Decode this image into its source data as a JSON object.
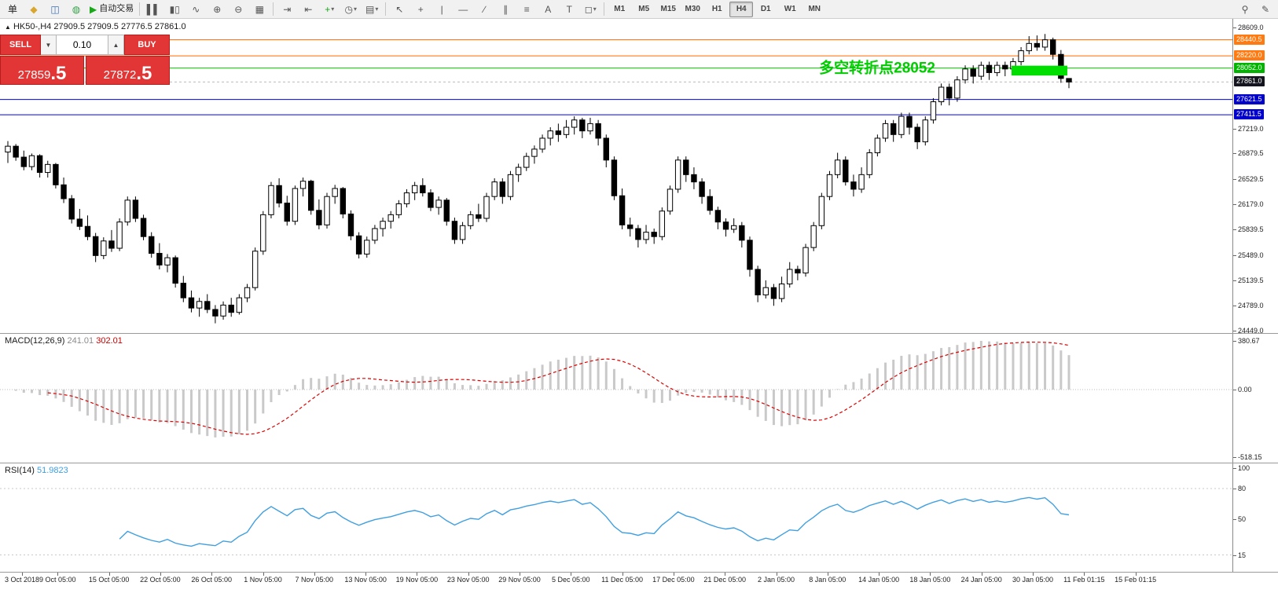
{
  "toolbar": {
    "left_items": [
      {
        "name": "new-order-button",
        "glyph": "单",
        "color": "#222"
      },
      {
        "name": "chart-wizard-icon",
        "glyph": "◆",
        "color": "#d9a62e"
      },
      {
        "name": "profiles-icon",
        "glyph": "◫",
        "color": "#3a6fb5"
      },
      {
        "name": "refresh-icon",
        "glyph": "◍",
        "color": "#36a04a"
      },
      {
        "name": "autotrading-button",
        "glyph": "▶",
        "color": "#18a818",
        "label": "自动交易"
      },
      {
        "sep": true
      },
      {
        "name": "bar-chart-button",
        "glyph": "▌▌"
      },
      {
        "name": "candlestick-chart-button",
        "glyph": "▮▯"
      },
      {
        "name": "line-chart-button",
        "glyph": "∿"
      },
      {
        "name": "zoom-in-button",
        "glyph": "⊕"
      },
      {
        "name": "zoom-out-button",
        "glyph": "⊖"
      },
      {
        "name": "tile-windows-button",
        "glyph": "▦"
      },
      {
        "sep": true
      },
      {
        "name": "auto-scroll-button",
        "glyph": "⇥"
      },
      {
        "name": "chart-shift-button",
        "glyph": "⇤"
      },
      {
        "name": "indicators-button",
        "glyph": "+",
        "color": "#18a818",
        "arrow": true
      },
      {
        "name": "periods-button",
        "glyph": "◷",
        "arrow": true
      },
      {
        "name": "templates-button",
        "glyph": "▤",
        "arrow": true
      },
      {
        "sep": true
      },
      {
        "name": "cursor-button",
        "glyph": "↖"
      },
      {
        "name": "crosshair-button",
        "glyph": "+"
      },
      {
        "name": "vertical-line-button",
        "glyph": "|"
      },
      {
        "name": "horizontal-line-button",
        "glyph": "—"
      },
      {
        "name": "trendline-button",
        "glyph": "∕"
      },
      {
        "name": "channel-button",
        "glyph": "∥"
      },
      {
        "name": "fibonacci-button",
        "glyph": "≡"
      },
      {
        "name": "text-button",
        "glyph": "A"
      },
      {
        "name": "text-label-button",
        "glyph": "T"
      },
      {
        "name": "shapes-button",
        "glyph": "◻",
        "arrow": true
      },
      {
        "sep": true
      }
    ],
    "timeframes": {
      "items": [
        "M1",
        "M5",
        "M15",
        "M30",
        "H1",
        "H4",
        "D1",
        "W1",
        "MN"
      ],
      "active": "H4"
    },
    "right_items": [
      {
        "name": "search-icon",
        "glyph": "⚲"
      },
      {
        "name": "edit-icon",
        "glyph": "✎"
      }
    ]
  },
  "symbol_header": {
    "arrow": "▲",
    "symbol": "HK50-,H4",
    "ohlc": "27909.5 27909.5 27776.5 27861.0"
  },
  "trade_panel": {
    "sell_label": "SELL",
    "buy_label": "BUY",
    "lot": "0.10",
    "spinner_down": "▼",
    "spinner_up": "▲",
    "sell_price": "27859",
    "sell_price_frac": ".5",
    "buy_price": "27872",
    "buy_price_frac": ".5"
  },
  "chart_data": {
    "type": "candlestick",
    "symbol": "HK50-",
    "timeframe": "H4",
    "price_range": {
      "min": 24449.0,
      "max": 28609.0
    },
    "y_ticks": [
      "28609.0",
      "27219.0",
      "26879.5",
      "26529.5",
      "26179.0",
      "25839.5",
      "25489.0",
      "25139.5",
      "24789.0",
      "24449.0"
    ],
    "levels": [
      {
        "price": 28440.5,
        "label": "28440.5",
        "line_color": "#ff6a00",
        "badge_color": "#ff7a10",
        "style": "solid"
      },
      {
        "price": 28220.0,
        "label": "28220.0",
        "line_color": "#ff6a00",
        "badge_color": "#ff7a10",
        "style": "solid"
      },
      {
        "price": 28052.0,
        "label": "28052.0",
        "line_color": "#00cc00",
        "badge_color": "#00b400",
        "style": "solid"
      },
      {
        "price": 27861.0,
        "label": "27861.0",
        "line_color": "#bbbbbb",
        "badge_color": "#15151f",
        "style": "dashed",
        "role": "last-price"
      },
      {
        "price": 27621.5,
        "label": "27621.5",
        "line_color": "#0000dd",
        "badge_color": "#0000cc",
        "style": "solid"
      },
      {
        "price": 27411.5,
        "label": "27411.5",
        "line_color": "#0000dd",
        "badge_color": "#0000cc",
        "style": "solid"
      }
    ],
    "annotation": {
      "text": "多空转折点28052",
      "price": 28052,
      "color": "#00cc00"
    },
    "highlight": {
      "from_candle": 125.8,
      "to_candle": 132.8,
      "price_top": 28085,
      "price_bottom": 27950,
      "color": "#00dd00"
    },
    "x_labels": [
      "3 Oct 2018",
      "9 Oct 05:00",
      "15 Oct 05:00",
      "22 Oct 05:00",
      "26 Oct 05:00",
      "1 Nov 05:00",
      "7 Nov 05:00",
      "13 Nov 05:00",
      "19 Nov 05:00",
      "23 Nov 05:00",
      "29 Nov 05:00",
      "5 Dec 05:00",
      "11 Dec 05:00",
      "17 Dec 05:00",
      "21 Dec 05:00",
      "2 Jan 05:00",
      "8 Jan 05:00",
      "14 Jan 05:00",
      "18 Jan 05:00",
      "24 Jan 05:00",
      "30 Jan 05:00",
      "11 Feb 01:15",
      "15 Feb 01:15"
    ],
    "candles": [
      [
        26900,
        27050,
        26750,
        26980
      ],
      [
        26980,
        27010,
        26780,
        26830
      ],
      [
        26830,
        26920,
        26650,
        26700
      ],
      [
        26700,
        26880,
        26650,
        26850
      ],
      [
        26850,
        26870,
        26550,
        26620
      ],
      [
        26620,
        26780,
        26550,
        26730
      ],
      [
        26730,
        26750,
        26400,
        26450
      ],
      [
        26450,
        26550,
        26200,
        26260
      ],
      [
        26260,
        26310,
        25920,
        25980
      ],
      [
        25980,
        26120,
        25830,
        25880
      ],
      [
        25880,
        26030,
        25690,
        25740
      ],
      [
        25740,
        25790,
        25390,
        25480
      ],
      [
        25480,
        25730,
        25430,
        25680
      ],
      [
        25680,
        25830,
        25530,
        25580
      ],
      [
        25580,
        25990,
        25540,
        25940
      ],
      [
        25940,
        26290,
        25890,
        26240
      ],
      [
        26240,
        26290,
        25940,
        25990
      ],
      [
        25990,
        26040,
        25690,
        25740
      ],
      [
        25740,
        25800,
        25450,
        25510
      ],
      [
        25510,
        25650,
        25290,
        25350
      ],
      [
        25350,
        25500,
        25250,
        25450
      ],
      [
        25450,
        25480,
        25040,
        25100
      ],
      [
        25100,
        25200,
        24840,
        24900
      ],
      [
        24900,
        25000,
        24700,
        24760
      ],
      [
        24760,
        24900,
        24640,
        24850
      ],
      [
        24850,
        24950,
        24690,
        24740
      ],
      [
        24740,
        24800,
        24550,
        24650
      ],
      [
        24650,
        24850,
        24600,
        24800
      ],
      [
        24800,
        24900,
        24640,
        24700
      ],
      [
        24700,
        24950,
        24670,
        24900
      ],
      [
        24900,
        25090,
        24840,
        25040
      ],
      [
        25040,
        25590,
        25000,
        25540
      ],
      [
        25540,
        26090,
        25490,
        26040
      ],
      [
        26040,
        26490,
        25990,
        26440
      ],
      [
        26440,
        26540,
        26140,
        26200
      ],
      [
        26200,
        26300,
        25890,
        25950
      ],
      [
        25950,
        26440,
        25900,
        26400
      ],
      [
        26400,
        26550,
        26290,
        26500
      ],
      [
        26500,
        26520,
        26040,
        26100
      ],
      [
        26100,
        26250,
        25840,
        25900
      ],
      [
        25900,
        26340,
        25850,
        26290
      ],
      [
        26290,
        26450,
        26190,
        26400
      ],
      [
        26400,
        26420,
        25990,
        26050
      ],
      [
        26050,
        26100,
        25690,
        25750
      ],
      [
        25750,
        25800,
        25440,
        25500
      ],
      [
        25500,
        25740,
        25450,
        25690
      ],
      [
        25690,
        25900,
        25640,
        25850
      ],
      [
        25850,
        26000,
        25740,
        25950
      ],
      [
        25950,
        26090,
        25850,
        26040
      ],
      [
        26040,
        26240,
        25990,
        26190
      ],
      [
        26190,
        26390,
        26140,
        26340
      ],
      [
        26340,
        26490,
        26240,
        26440
      ],
      [
        26440,
        26540,
        26290,
        26340
      ],
      [
        26340,
        26390,
        26090,
        26140
      ],
      [
        26140,
        26290,
        26040,
        26240
      ],
      [
        26240,
        26270,
        25890,
        25950
      ],
      [
        25950,
        26000,
        25640,
        25700
      ],
      [
        25700,
        25940,
        25640,
        25890
      ],
      [
        25890,
        26090,
        25840,
        26040
      ],
      [
        26040,
        26190,
        25940,
        25990
      ],
      [
        25990,
        26340,
        25940,
        26290
      ],
      [
        26290,
        26540,
        26240,
        26490
      ],
      [
        26490,
        26540,
        26190,
        26290
      ],
      [
        26290,
        26640,
        26240,
        26590
      ],
      [
        26590,
        26740,
        26490,
        26690
      ],
      [
        26690,
        26890,
        26640,
        26840
      ],
      [
        26840,
        26990,
        26740,
        26940
      ],
      [
        26940,
        27140,
        26890,
        27090
      ],
      [
        27090,
        27240,
        26990,
        27190
      ],
      [
        27190,
        27290,
        27040,
        27140
      ],
      [
        27140,
        27340,
        27090,
        27240
      ],
      [
        27240,
        27390,
        27140,
        27340
      ],
      [
        27340,
        27370,
        27090,
        27190
      ],
      [
        27190,
        27370,
        27140,
        27290
      ],
      [
        27290,
        27340,
        26990,
        27090
      ],
      [
        27090,
        27140,
        26690,
        26790
      ],
      [
        26790,
        26840,
        26240,
        26300
      ],
      [
        26300,
        26400,
        25840,
        25900
      ],
      [
        25900,
        26000,
        25740,
        25850
      ],
      [
        25850,
        25900,
        25590,
        25700
      ],
      [
        25700,
        25900,
        25640,
        25800
      ],
      [
        25800,
        25850,
        25640,
        25740
      ],
      [
        25740,
        26140,
        25690,
        26090
      ],
      [
        26090,
        26440,
        26040,
        26390
      ],
      [
        26390,
        26840,
        26340,
        26790
      ],
      [
        26790,
        26840,
        26490,
        26590
      ],
      [
        26590,
        26690,
        26390,
        26490
      ],
      [
        26490,
        26540,
        26190,
        26290
      ],
      [
        26290,
        26390,
        26040,
        26100
      ],
      [
        26100,
        26150,
        25840,
        25940
      ],
      [
        25940,
        25990,
        25740,
        25840
      ],
      [
        25840,
        25990,
        25790,
        25890
      ],
      [
        25890,
        25940,
        25590,
        25690
      ],
      [
        25690,
        25740,
        25190,
        25290
      ],
      [
        25290,
        25340,
        24840,
        24940
      ],
      [
        24940,
        25140,
        24890,
        25040
      ],
      [
        25040,
        25090,
        24790,
        24890
      ],
      [
        24890,
        25190,
        24840,
        25090
      ],
      [
        25090,
        25390,
        25040,
        25290
      ],
      [
        25290,
        25340,
        25140,
        25240
      ],
      [
        25240,
        25640,
        25190,
        25590
      ],
      [
        25590,
        25940,
        25540,
        25890
      ],
      [
        25890,
        26340,
        25840,
        26290
      ],
      [
        26290,
        26640,
        26240,
        26590
      ],
      [
        26590,
        26890,
        26540,
        26790
      ],
      [
        26790,
        26840,
        26440,
        26490
      ],
      [
        26490,
        26590,
        26290,
        26390
      ],
      [
        26390,
        26690,
        26340,
        26590
      ],
      [
        26590,
        26940,
        26540,
        26890
      ],
      [
        26890,
        27140,
        26840,
        27090
      ],
      [
        27090,
        27340,
        27040,
        27290
      ],
      [
        27290,
        27340,
        27040,
        27140
      ],
      [
        27140,
        27440,
        27090,
        27390
      ],
      [
        27390,
        27440,
        27140,
        27240
      ],
      [
        27240,
        27290,
        26940,
        27040
      ],
      [
        27040,
        27390,
        26990,
        27340
      ],
      [
        27340,
        27640,
        27290,
        27590
      ],
      [
        27590,
        27840,
        27540,
        27790
      ],
      [
        27790,
        27840,
        27540,
        27640
      ],
      [
        27640,
        27940,
        27590,
        27890
      ],
      [
        27890,
        28090,
        27840,
        28040
      ],
      [
        28040,
        28090,
        27840,
        27940
      ],
      [
        27940,
        28140,
        27890,
        28090
      ],
      [
        28090,
        28140,
        27890,
        27990
      ],
      [
        27990,
        28140,
        27940,
        28090
      ],
      [
        28090,
        28140,
        27940,
        28040
      ],
      [
        28040,
        28190,
        27990,
        28140
      ],
      [
        28140,
        28340,
        28090,
        28290
      ],
      [
        28290,
        28490,
        28240,
        28390
      ],
      [
        28390,
        28500,
        28290,
        28340
      ],
      [
        28340,
        28520,
        28290,
        28440
      ],
      [
        28440,
        28470,
        28170,
        28240
      ],
      [
        28240,
        28300,
        27850,
        27910
      ],
      [
        27909.5,
        27909.5,
        27776.5,
        27861.0
      ]
    ],
    "indicators": [
      {
        "name": "MACD",
        "title": "MACD(12,26,9)",
        "main_value": "241.01",
        "signal_value": "302.01",
        "axis_labels": [
          "380.67",
          "0.00",
          "-518.15"
        ],
        "histogram_color": "#c9c9c9",
        "signal_color": "#dd0000"
      },
      {
        "name": "RSI",
        "title": "RSI(14)",
        "value": "51.9823",
        "axis_labels": [
          "100",
          "80",
          "50",
          "15"
        ],
        "levels": [
          80,
          15
        ],
        "line_color": "#3f9fe0"
      }
    ]
  }
}
